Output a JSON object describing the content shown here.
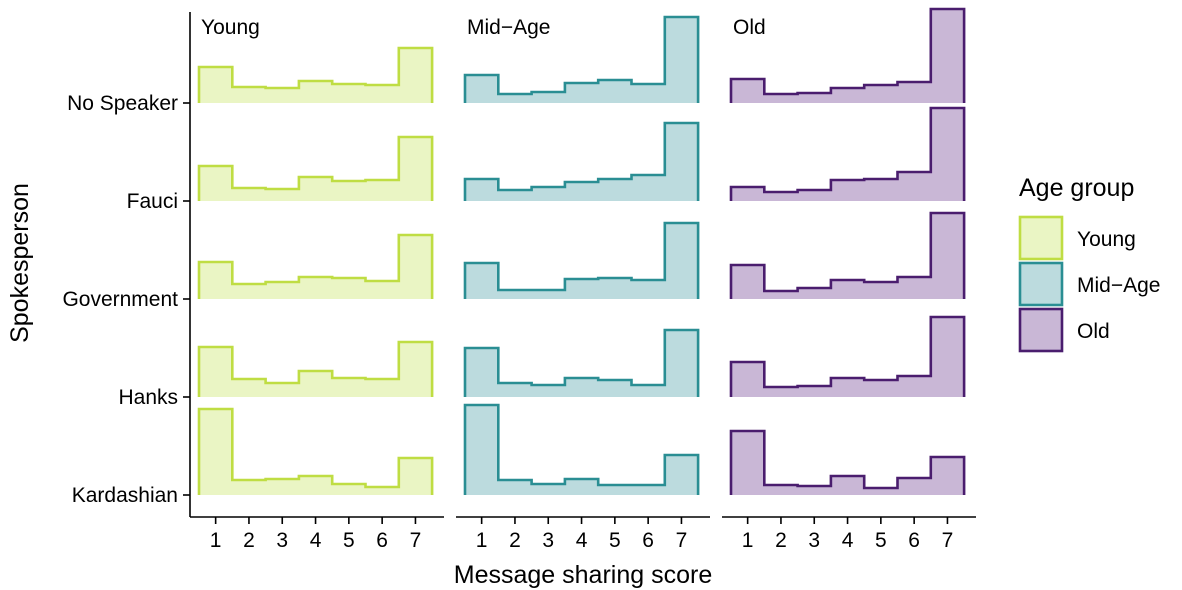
{
  "chart_data": {
    "type": "histogram",
    "xlabel": "Message sharing score",
    "ylabel": "Spokesperson",
    "x_ticks": [
      "1",
      "2",
      "3",
      "4",
      "5",
      "6",
      "7"
    ],
    "rows": [
      "No Speaker",
      "Fauci",
      "Government",
      "Hanks",
      "Kardashian"
    ],
    "legend": {
      "title": "Age group",
      "position": "right",
      "entries": [
        "Young",
        "Mid−Age",
        "Old"
      ]
    },
    "grid": false,
    "panels": [
      {
        "name": "Young",
        "line_color": "#bfdd43",
        "fill_color": "#eaf5c4",
        "values": {
          "No Speaker": [
            0.36,
            0.16,
            0.15,
            0.22,
            0.19,
            0.18,
            0.55
          ],
          "Fauci": [
            0.35,
            0.13,
            0.12,
            0.24,
            0.2,
            0.21,
            0.64
          ],
          "Government": [
            0.37,
            0.15,
            0.17,
            0.22,
            0.21,
            0.18,
            0.64
          ],
          "Hanks": [
            0.5,
            0.18,
            0.14,
            0.26,
            0.19,
            0.18,
            0.55
          ],
          "Kardashian": [
            0.86,
            0.15,
            0.16,
            0.19,
            0.11,
            0.08,
            0.37
          ]
        }
      },
      {
        "name": "Mid−Age",
        "line_color": "#2a8e93",
        "fill_color": "#bcdbde",
        "values": {
          "No Speaker": [
            0.28,
            0.09,
            0.11,
            0.2,
            0.23,
            0.19,
            0.86
          ],
          "Fauci": [
            0.22,
            0.11,
            0.14,
            0.19,
            0.22,
            0.26,
            0.78
          ],
          "Government": [
            0.36,
            0.09,
            0.09,
            0.2,
            0.21,
            0.19,
            0.76
          ],
          "Hanks": [
            0.49,
            0.14,
            0.12,
            0.19,
            0.17,
            0.12,
            0.67
          ],
          "Kardashian": [
            0.9,
            0.15,
            0.11,
            0.16,
            0.1,
            0.1,
            0.4
          ]
        }
      },
      {
        "name": "Old",
        "line_color": "#4a1d6e",
        "fill_color": "#c9b7d6",
        "values": {
          "No Speaker": [
            0.24,
            0.09,
            0.1,
            0.15,
            0.18,
            0.21,
            0.94
          ],
          "Fauci": [
            0.14,
            0.09,
            0.11,
            0.21,
            0.22,
            0.29,
            0.93
          ],
          "Government": [
            0.34,
            0.08,
            0.11,
            0.19,
            0.17,
            0.22,
            0.86
          ],
          "Hanks": [
            0.35,
            0.1,
            0.11,
            0.19,
            0.17,
            0.21,
            0.8
          ],
          "Kardashian": [
            0.64,
            0.1,
            0.09,
            0.19,
            0.07,
            0.17,
            0.38
          ]
        }
      }
    ]
  }
}
